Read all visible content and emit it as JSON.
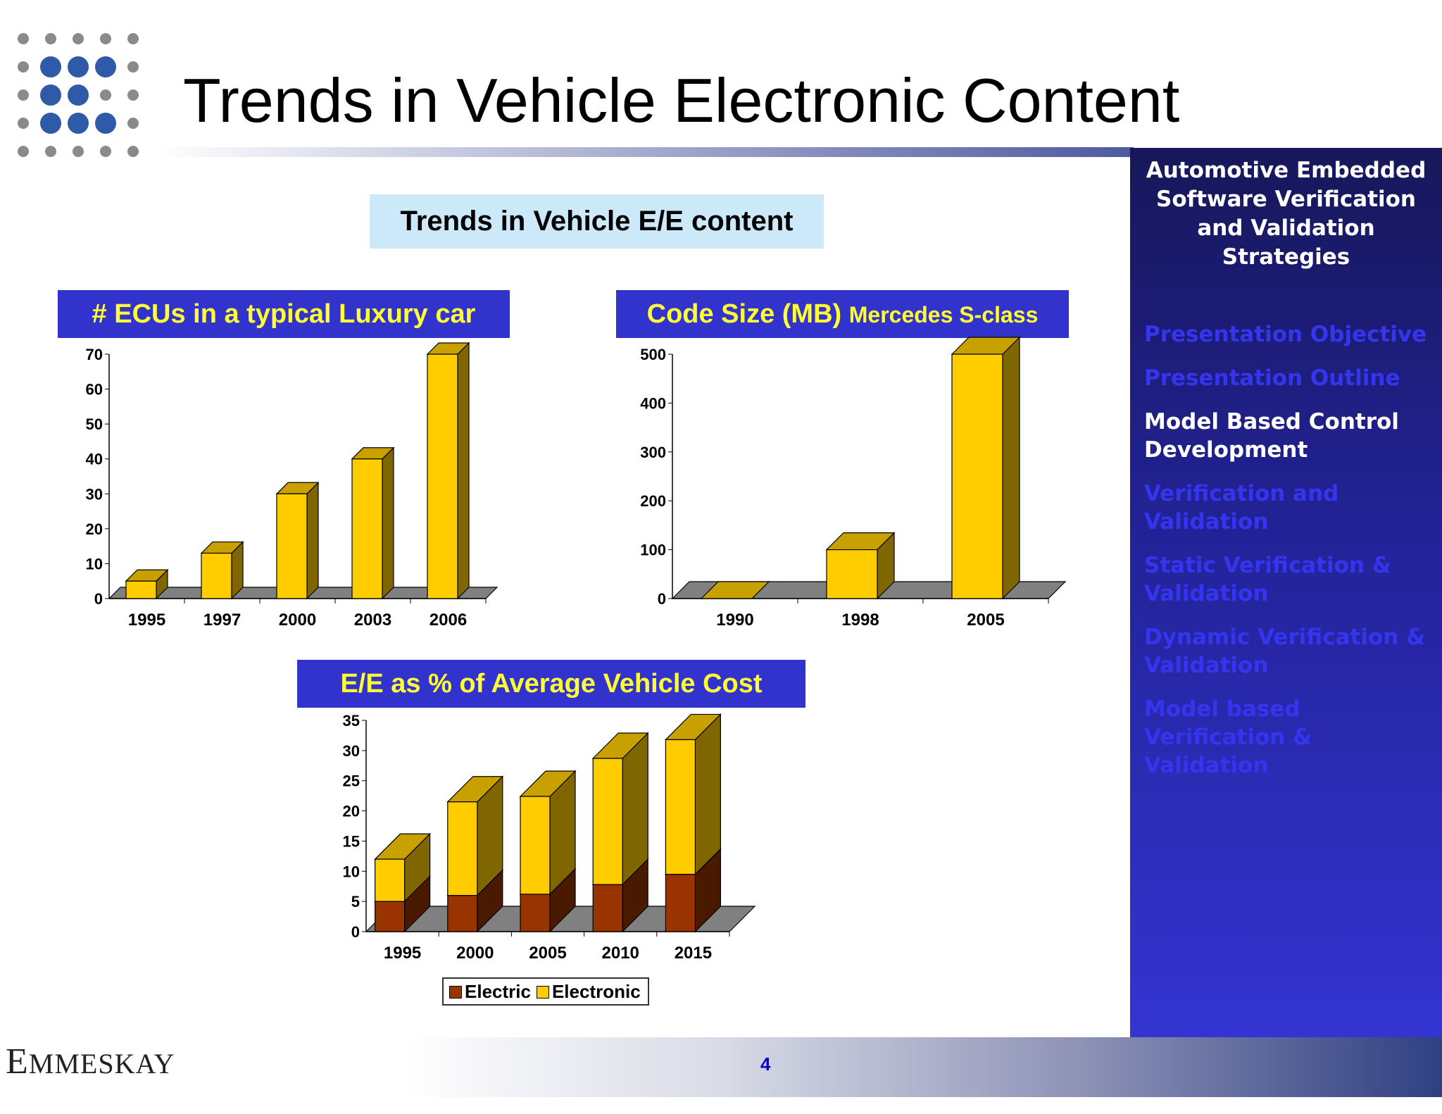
{
  "slide": {
    "title": "Trends in Vehicle Electronic Content",
    "subtitle": "Trends in Vehicle E/E content",
    "page_number": "4",
    "brand": "EMMESKAY"
  },
  "panel": {
    "title_lines": [
      "Automotive Embedded",
      "Software Verification",
      "and Validation",
      "Strategies"
    ],
    "items": [
      {
        "lines": [
          "Presentation Objective"
        ],
        "active": false
      },
      {
        "lines": [
          "Presentation Outline"
        ],
        "active": false
      },
      {
        "lines": [
          "Model Based Control",
          "Development"
        ],
        "active": true
      },
      {
        "lines": [
          "Verification and",
          "Validation"
        ],
        "active": false
      },
      {
        "lines": [
          "Static Verification &",
          "Validation"
        ],
        "active": false
      },
      {
        "lines": [
          "Dynamic Verification &",
          "Validation"
        ],
        "active": false
      },
      {
        "lines": [
          "Model based",
          "Verification & Validation"
        ],
        "active": false
      }
    ]
  },
  "colors": {
    "bar": "#ffcc00",
    "electric": "#993300",
    "header_bg": "#3232cc",
    "header_text": "#ffff33",
    "panel": "#23239a"
  },
  "chart_data": [
    {
      "type": "bar",
      "title": "# ECUs in a typical Luxury car",
      "categories": [
        "1995",
        "1997",
        "2000",
        "2003",
        "2006"
      ],
      "values": [
        5,
        13,
        30,
        40,
        70
      ],
      "ylim": [
        0,
        70
      ],
      "yticks": [
        0,
        10,
        20,
        30,
        40,
        50,
        60,
        70
      ],
      "xlabel": "",
      "ylabel": ""
    },
    {
      "type": "bar",
      "title": "Code Size (MB)",
      "title_suffix": "Mercedes S-class",
      "categories": [
        "1990",
        "1998",
        "2005"
      ],
      "values": [
        0,
        100,
        500
      ],
      "ylim": [
        0,
        500
      ],
      "yticks": [
        0,
        100,
        200,
        300,
        400,
        500
      ],
      "xlabel": "",
      "ylabel": ""
    },
    {
      "type": "bar",
      "stacked": true,
      "title": "E/E as % of Average Vehicle Cost",
      "categories": [
        "1995",
        "2000",
        "2005",
        "2010",
        "2015"
      ],
      "series": [
        {
          "name": "Electric",
          "values": [
            5,
            6,
            6.2,
            7.8,
            9.5
          ]
        },
        {
          "name": "Electronic",
          "values": [
            7,
            15.5,
            16.2,
            20.9,
            22.3
          ]
        }
      ],
      "ylim": [
        0,
        35
      ],
      "yticks": [
        0,
        5,
        10,
        15,
        20,
        25,
        30,
        35
      ],
      "legend": "bottom",
      "xlabel": "",
      "ylabel": ""
    }
  ]
}
